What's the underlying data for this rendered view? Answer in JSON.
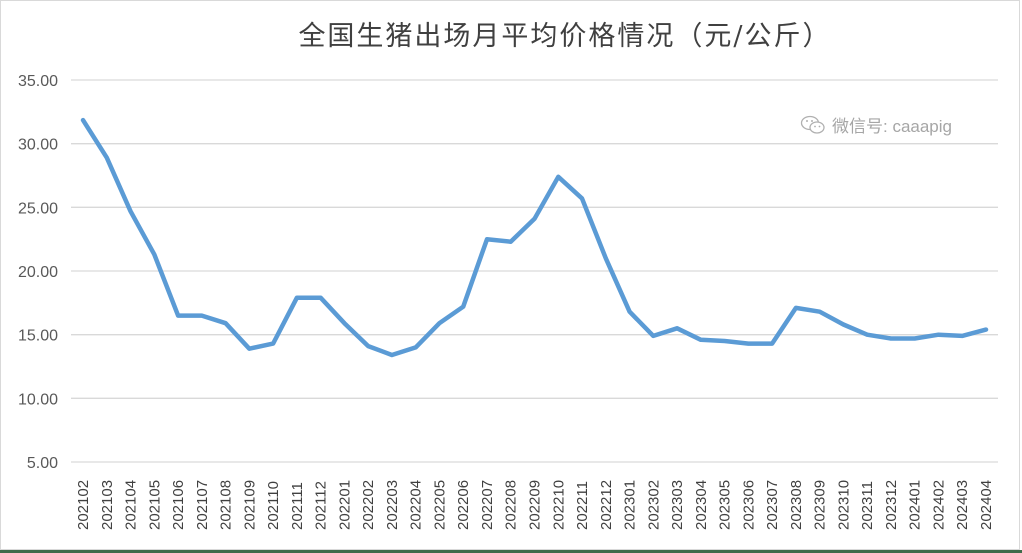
{
  "chart": {
    "title": "全国生猪出场月平均价格情况（元/公斤）",
    "watermark": "微信号: caaapig",
    "watermark_icon": "wechat-icon",
    "line_color": "#5b9bd5",
    "grid_color": "#d9d9d9"
  },
  "chart_data": {
    "type": "line",
    "title": "全国生猪出场月平均价格情况（元/公斤）",
    "xlabel": "",
    "ylabel": "",
    "ylim": [
      5,
      35
    ],
    "yticks": [
      "5.00",
      "10.00",
      "15.00",
      "20.00",
      "25.00",
      "30.00",
      "35.00"
    ],
    "grid": true,
    "legend": "none",
    "categories": [
      "202102",
      "202103",
      "202104",
      "202105",
      "202106",
      "202107",
      "202108",
      "202109",
      "202110",
      "202111",
      "202112",
      "202201",
      "202202",
      "202203",
      "202204",
      "202205",
      "202206",
      "202207",
      "202208",
      "202209",
      "202210",
      "202211",
      "202212",
      "202301",
      "202302",
      "202303",
      "202304",
      "202305",
      "202306",
      "202307",
      "202308",
      "202309",
      "202310",
      "202311",
      "202312",
      "202401",
      "202402",
      "202403",
      "202404"
    ],
    "series": [
      {
        "name": "全国生猪出场月平均价格",
        "values": [
          31.85,
          28.9,
          24.7,
          21.3,
          16.5,
          16.5,
          15.9,
          13.9,
          14.3,
          17.9,
          17.9,
          15.9,
          14.1,
          13.4,
          14.0,
          15.9,
          17.2,
          22.5,
          22.3,
          24.1,
          27.4,
          25.7,
          21.0,
          16.8,
          14.9,
          15.5,
          14.6,
          14.5,
          14.3,
          14.3,
          17.1,
          16.8,
          15.8,
          15.0,
          14.7,
          14.7,
          15.0,
          14.9,
          15.4
        ]
      }
    ]
  }
}
